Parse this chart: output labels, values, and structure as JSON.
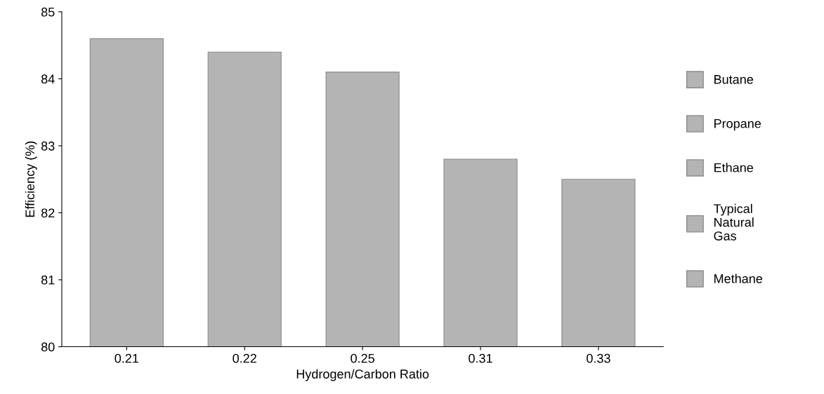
{
  "chart_data": {
    "type": "bar",
    "xlabel": "Hydrogen/Carbon Ratio",
    "ylabel": "Efficiency (%)",
    "categories": [
      "0.21",
      "0.22",
      "0.25",
      "0.31",
      "0.33"
    ],
    "series": [
      {
        "name": "Butane",
        "color": "#b4b4b4",
        "values": [
          84.6,
          null,
          null,
          null,
          null
        ]
      },
      {
        "name": "Propane",
        "color": "#b4b4b4",
        "values": [
          null,
          84.4,
          null,
          null,
          null
        ]
      },
      {
        "name": "Ethane",
        "color": "#b4b4b4",
        "values": [
          null,
          null,
          84.1,
          null,
          null
        ]
      },
      {
        "name": "Typical\nNatural\nGas",
        "color": "#b4b4b4",
        "values": [
          null,
          null,
          null,
          82.8,
          null
        ]
      },
      {
        "name": "Methane",
        "color": "#b4b4b4",
        "values": [
          null,
          null,
          null,
          null,
          82.5
        ]
      }
    ],
    "ylim": [
      80,
      85
    ],
    "yticks": [
      80,
      81,
      82,
      83,
      84,
      85
    ],
    "grid": false,
    "legend": "right"
  }
}
